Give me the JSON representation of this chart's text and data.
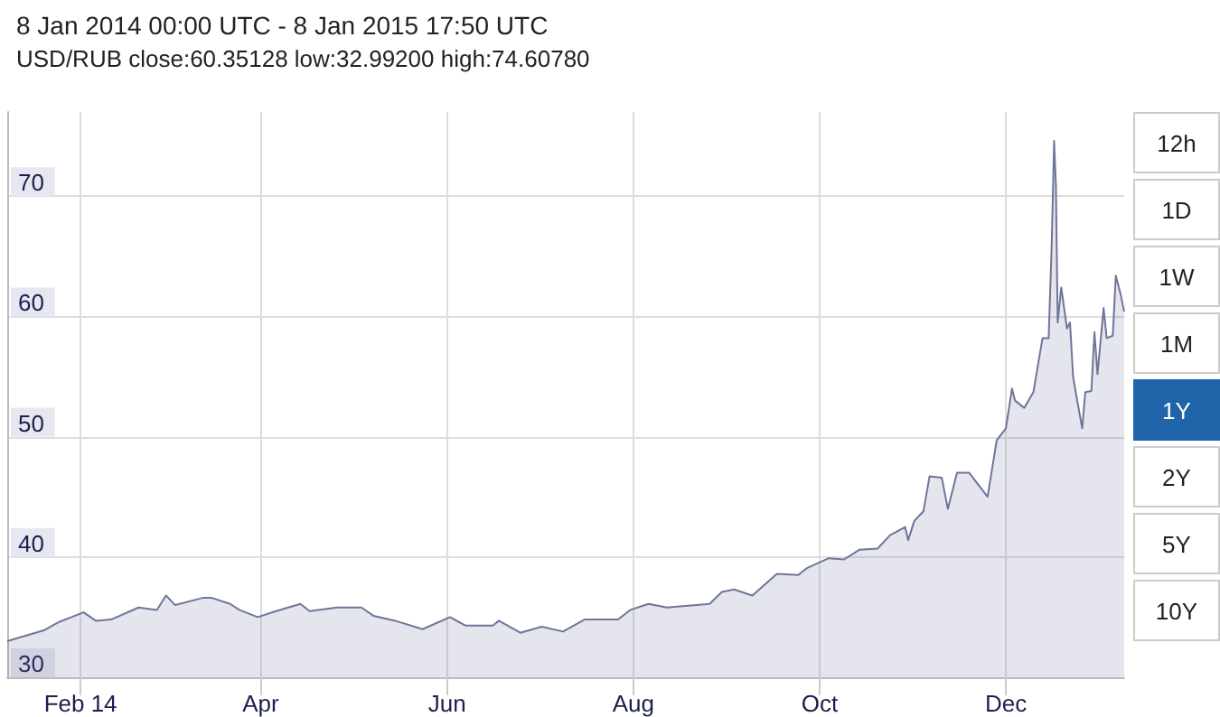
{
  "chart_data": {
    "type": "area",
    "title": "8 Jan 2014 00:00 UTC - 8 Jan 2015 17:50 UTC",
    "subtitle": "USD/RUB close:60.35128 low:32.99200 high:74.60780",
    "annotations": [
      "12h",
      "1D",
      "1W",
      "1M",
      "1Y",
      "2Y",
      "5Y",
      "10Y"
    ],
    "x": [
      "2014-01-08",
      "2014-01-20",
      "2014-01-25",
      "2014-02-02",
      "2014-02-06",
      "2014-02-11",
      "2014-02-20",
      "2014-02-26",
      "2014-03-01",
      "2014-03-04",
      "2014-03-13",
      "2014-03-16",
      "2014-03-22",
      "2014-03-25",
      "2014-03-31",
      "2014-04-06",
      "2014-04-14",
      "2014-04-17",
      "2014-04-26",
      "2014-05-04",
      "2014-05-08",
      "2014-05-15",
      "2014-05-24",
      "2014-06-02",
      "2014-06-07",
      "2014-06-16",
      "2014-06-18",
      "2014-06-25",
      "2014-07-02",
      "2014-07-09",
      "2014-07-16",
      "2014-07-21",
      "2014-07-27",
      "2014-07-31",
      "2014-08-06",
      "2014-08-12",
      "2014-08-26",
      "2014-08-30",
      "2014-09-03",
      "2014-09-09",
      "2014-09-17",
      "2014-09-24",
      "2014-09-27",
      "2014-10-04",
      "2014-10-09",
      "2014-10-14",
      "2014-10-20",
      "2014-10-24",
      "2014-10-29",
      "2014-10-30",
      "2014-11-01",
      "2014-11-04",
      "2014-11-06",
      "2014-11-10",
      "2014-11-12",
      "2014-11-15",
      "2014-11-19",
      "2014-11-25",
      "2014-11-28",
      "2014-12-01",
      "2014-12-03",
      "2014-12-04",
      "2014-12-07",
      "2014-12-10",
      "2014-12-13",
      "2014-12-15",
      "2014-12-16T00:00",
      "2014-12-16T19:00",
      "2014-12-17T09:00",
      "2014-12-17T23:00",
      "2014-12-19T03:00",
      "2014-12-21",
      "2014-12-22",
      "2014-12-23",
      "2014-12-24",
      "2014-12-26",
      "2014-12-27",
      "2014-12-29",
      "2014-12-30",
      "2014-12-31",
      "2015-01-02",
      "2015-01-03",
      "2015-01-05",
      "2015-01-06",
      "2015-01-07T12:00",
      "2015-01-08T17:50"
    ],
    "series": [
      {
        "color": "#6e7599",
        "values": [
          33.0,
          33.9,
          34.6,
          35.4,
          34.7,
          34.8,
          35.8,
          35.6,
          36.8,
          36.0,
          36.6,
          36.6,
          36.1,
          35.6,
          35.0,
          35.5,
          36.1,
          35.5,
          35.8,
          35.8,
          35.1,
          34.7,
          34.0,
          35.0,
          34.3,
          34.3,
          34.7,
          33.7,
          34.2,
          33.8,
          34.8,
          34.8,
          34.8,
          35.6,
          36.1,
          35.8,
          36.1,
          37.1,
          37.3,
          36.8,
          38.6,
          38.5,
          39.1,
          39.9,
          39.8,
          40.6,
          40.7,
          41.8,
          42.5,
          41.4,
          43.0,
          43.8,
          46.7,
          46.6,
          44.0,
          47.0,
          47.0,
          45.0,
          49.7,
          50.7,
          54.0,
          53.0,
          52.4,
          53.7,
          58.2,
          58.2,
          65.9,
          74.6,
          70.9,
          59.5,
          62.4,
          59.0,
          59.5,
          55.0,
          53.5,
          50.7,
          53.7,
          53.8,
          58.7,
          55.2,
          60.7,
          58.2,
          58.4,
          63.4,
          61.9,
          60.4
        ]
      }
    ],
    "xlim": [
      "2014-01-08",
      "2015-01-08T17:50"
    ],
    "xticks": [
      {
        "value": "2014-02-01",
        "label": "Feb 14"
      },
      {
        "value": "2014-04-01",
        "label": "Apr"
      },
      {
        "value": "2014-06-01",
        "label": "Jun"
      },
      {
        "value": "2014-08-01",
        "label": "Aug"
      },
      {
        "value": "2014-10-01",
        "label": "Oct"
      },
      {
        "value": "2014-12-01",
        "label": "Dec"
      }
    ],
    "ylim": [
      30,
      77
    ],
    "yticks": [
      30,
      40,
      50,
      60,
      70
    ],
    "grid": true,
    "marker": "none",
    "line_style": "solid"
  }
}
